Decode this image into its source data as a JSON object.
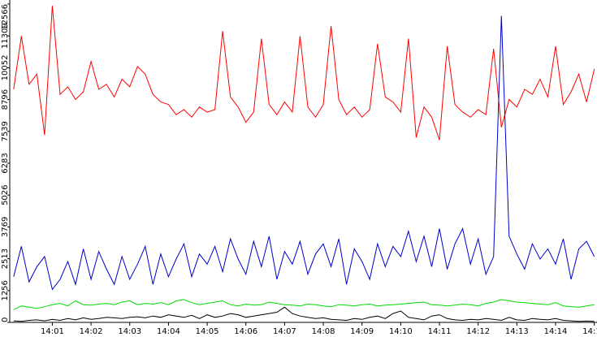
{
  "chart_data": {
    "type": "line",
    "x": [
      0,
      0.2,
      0.4,
      0.6,
      0.8,
      1,
      1.2,
      1.4,
      1.6,
      1.8,
      2,
      2.2,
      2.4,
      2.6,
      2.8,
      3,
      3.2,
      3.4,
      3.6,
      3.8,
      4,
      4.2,
      4.4,
      4.6,
      4.8,
      5,
      5.2,
      5.4,
      5.6,
      5.8,
      6,
      6.2,
      6.4,
      6.6,
      6.8,
      7,
      7.2,
      7.4,
      7.6,
      7.8,
      8,
      8.2,
      8.4,
      8.6,
      8.8,
      9,
      9.2,
      9.4,
      9.6,
      9.8,
      10,
      10.2,
      10.4,
      10.6,
      10.8,
      11,
      11.2,
      11.4,
      11.6,
      11.8,
      12,
      12.2,
      12.4,
      12.6,
      12.8,
      13,
      13.2,
      13.4,
      13.6,
      13.8,
      14,
      14.2,
      14.4,
      14.6,
      14.8,
      15
    ],
    "xlim": [
      -0.1,
      15.07
    ],
    "xticks": [
      {
        "value": 1,
        "label": "14:01"
      },
      {
        "value": 2,
        "label": "14:02"
      },
      {
        "value": 3,
        "label": "14:03"
      },
      {
        "value": 4,
        "label": "14:04"
      },
      {
        "value": 5,
        "label": "14:05"
      },
      {
        "value": 6,
        "label": "14:06"
      },
      {
        "value": 7,
        "label": "14:07"
      },
      {
        "value": 8,
        "label": "14:08"
      },
      {
        "value": 9,
        "label": "14:09"
      },
      {
        "value": 10,
        "label": "14:10"
      },
      {
        "value": 11,
        "label": "14:11"
      },
      {
        "value": 12,
        "label": "14:12"
      },
      {
        "value": 13,
        "label": "14:13"
      },
      {
        "value": 14,
        "label": "14:14"
      },
      {
        "value": 15,
        "label": "14:15"
      }
    ],
    "ylim": [
      0,
      12566
    ],
    "yticks": [
      0,
      1256,
      2513,
      3769,
      5026,
      6283,
      7539,
      8796,
      10052,
      11309,
      12566
    ],
    "grid": false,
    "series": [
      {
        "color": "#ff0000",
        "values": [
          9200,
          11300,
          9400,
          9800,
          7400,
          12500,
          9000,
          9300,
          8800,
          9100,
          10300,
          9200,
          9400,
          8900,
          9600,
          9300,
          10100,
          9800,
          9000,
          8700,
          8600,
          8200,
          8400,
          8100,
          8500,
          8300,
          8400,
          11500,
          8900,
          8500,
          7900,
          8300,
          11200,
          8600,
          8200,
          8700,
          8300,
          11300,
          8500,
          8100,
          8600,
          11700,
          8800,
          8200,
          8500,
          8100,
          8400,
          11000,
          8900,
          8700,
          8300,
          11200,
          7300,
          8500,
          8100,
          7200,
          10900,
          8600,
          8300,
          8100,
          8400,
          8200,
          10800,
          7700,
          8800,
          8500,
          9200,
          9000,
          9600,
          8900,
          10900,
          8600,
          9100,
          9800,
          8700,
          10000
        ]
      },
      {
        "color": "#0000cc",
        "values": [
          1800,
          3000,
          1600,
          2200,
          2600,
          1300,
          1700,
          2400,
          1500,
          2900,
          1700,
          2800,
          2100,
          1500,
          2600,
          1700,
          2300,
          3000,
          1500,
          2700,
          1800,
          2500,
          3100,
          1800,
          2700,
          2300,
          3000,
          2000,
          3300,
          2500,
          1900,
          3200,
          2200,
          3400,
          1700,
          2800,
          2300,
          3200,
          1900,
          2700,
          3100,
          2200,
          3300,
          1500,
          2900,
          2400,
          1700,
          3100,
          2200,
          3000,
          2600,
          3600,
          2400,
          3400,
          2200,
          3700,
          2100,
          3100,
          3700,
          2300,
          3300,
          1900,
          2600,
          12100,
          3400,
          2700,
          2100,
          3100,
          2500,
          2900,
          2300,
          3300,
          1700,
          2900,
          3200,
          2600
        ]
      },
      {
        "color": "#00dd00",
        "values": [
          500,
          650,
          600,
          550,
          620,
          700,
          750,
          650,
          850,
          700,
          680,
          720,
          750,
          700,
          800,
          850,
          700,
          750,
          720,
          780,
          700,
          850,
          900,
          780,
          700,
          750,
          800,
          850,
          700,
          650,
          720,
          680,
          700,
          800,
          750,
          700,
          680,
          650,
          720,
          700,
          650,
          620,
          700,
          680,
          650,
          700,
          720,
          650,
          680,
          700,
          720,
          750,
          780,
          800,
          700,
          680,
          650,
          680,
          720,
          700,
          650,
          750,
          800,
          900,
          850,
          800,
          780,
          750,
          720,
          700,
          780,
          650,
          620,
          600,
          650,
          700
        ]
      },
      {
        "color": "#000000",
        "values": [
          60,
          40,
          80,
          100,
          60,
          120,
          80,
          150,
          100,
          180,
          120,
          150,
          200,
          180,
          150,
          200,
          220,
          180,
          250,
          200,
          300,
          250,
          200,
          280,
          150,
          300,
          200,
          250,
          350,
          300,
          200,
          250,
          300,
          350,
          400,
          600,
          350,
          250,
          200,
          150,
          180,
          120,
          100,
          80,
          150,
          120,
          200,
          250,
          150,
          350,
          450,
          200,
          150,
          100,
          250,
          300,
          150,
          100,
          80,
          120,
          100,
          150,
          120,
          80,
          200,
          100,
          80,
          150,
          120,
          100,
          150,
          80,
          60,
          40,
          50,
          40
        ]
      }
    ]
  }
}
